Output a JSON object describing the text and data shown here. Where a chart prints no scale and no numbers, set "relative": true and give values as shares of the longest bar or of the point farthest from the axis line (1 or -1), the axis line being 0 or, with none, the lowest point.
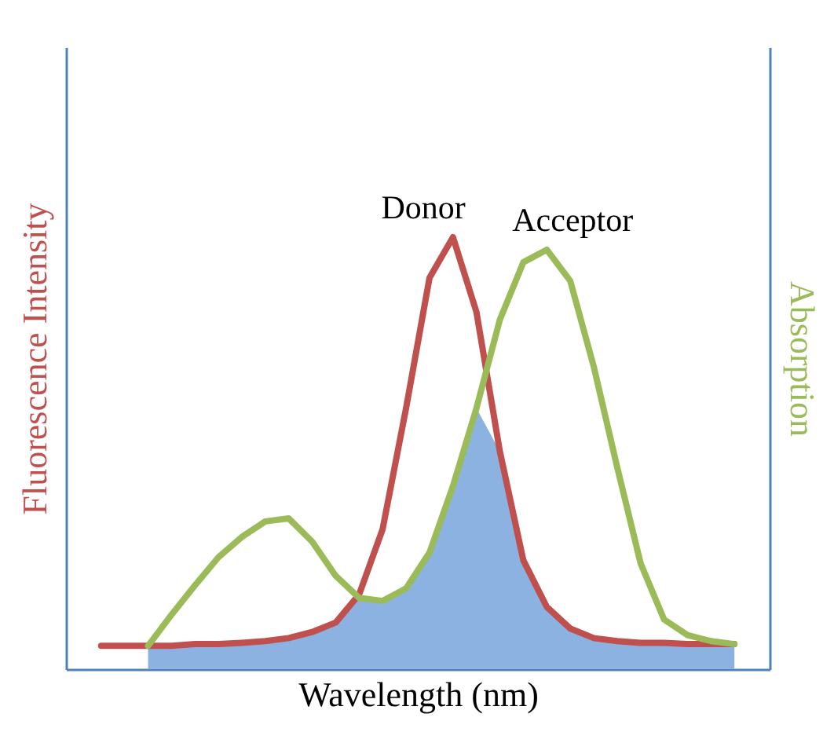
{
  "chart_data": {
    "type": "line",
    "relative": true,
    "xlabel": "Wavelength (nm)",
    "ylabel": "Fluorescence Intensity",
    "y2label": "Absorption",
    "legend": false,
    "marker": "none",
    "categories": [
      null,
      null,
      null,
      null,
      null,
      null,
      null,
      null,
      null,
      null,
      null,
      null,
      null,
      null,
      null,
      null,
      null,
      null,
      null,
      null,
      null,
      null,
      null,
      null,
      null,
      null,
      null,
      null,
      null,
      null
    ],
    "series": [
      {
        "type": "area",
        "color": "#8cb2e2",
        "values": [
          null,
          null,
          null,
          0.054,
          0.054,
          0.058,
          0.058,
          0.061,
          0.065,
          0.072,
          0.086,
          0.108,
          0.165,
          0.158,
          0.187,
          0.27,
          0.424,
          0.604,
          0.504,
          0.252,
          0.144,
          0.094,
          0.072,
          0.065,
          0.061,
          0.061,
          0.058,
          0.058,
          0.058,
          null
        ]
      },
      {
        "name": "Donor",
        "color": "#c0504d",
        "values": [
          null,
          0.054,
          0.054,
          0.054,
          0.054,
          0.058,
          0.058,
          0.061,
          0.065,
          0.072,
          0.086,
          0.108,
          0.173,
          0.324,
          0.604,
          0.906,
          1,
          0.827,
          0.504,
          0.252,
          0.144,
          0.094,
          0.072,
          0.065,
          0.061,
          0.061,
          0.058,
          0.058,
          0.058,
          null
        ]
      },
      {
        "name": "Acceptor",
        "color": "#9bbb59",
        "values": [
          null,
          null,
          null,
          0.054,
          0.126,
          0.194,
          0.259,
          0.306,
          0.342,
          0.349,
          0.295,
          0.216,
          0.165,
          0.158,
          0.187,
          0.27,
          0.424,
          0.604,
          0.809,
          0.942,
          0.971,
          0.899,
          0.701,
          0.468,
          0.245,
          0.115,
          0.079,
          0.065,
          0.058,
          null
        ]
      }
    ]
  }
}
